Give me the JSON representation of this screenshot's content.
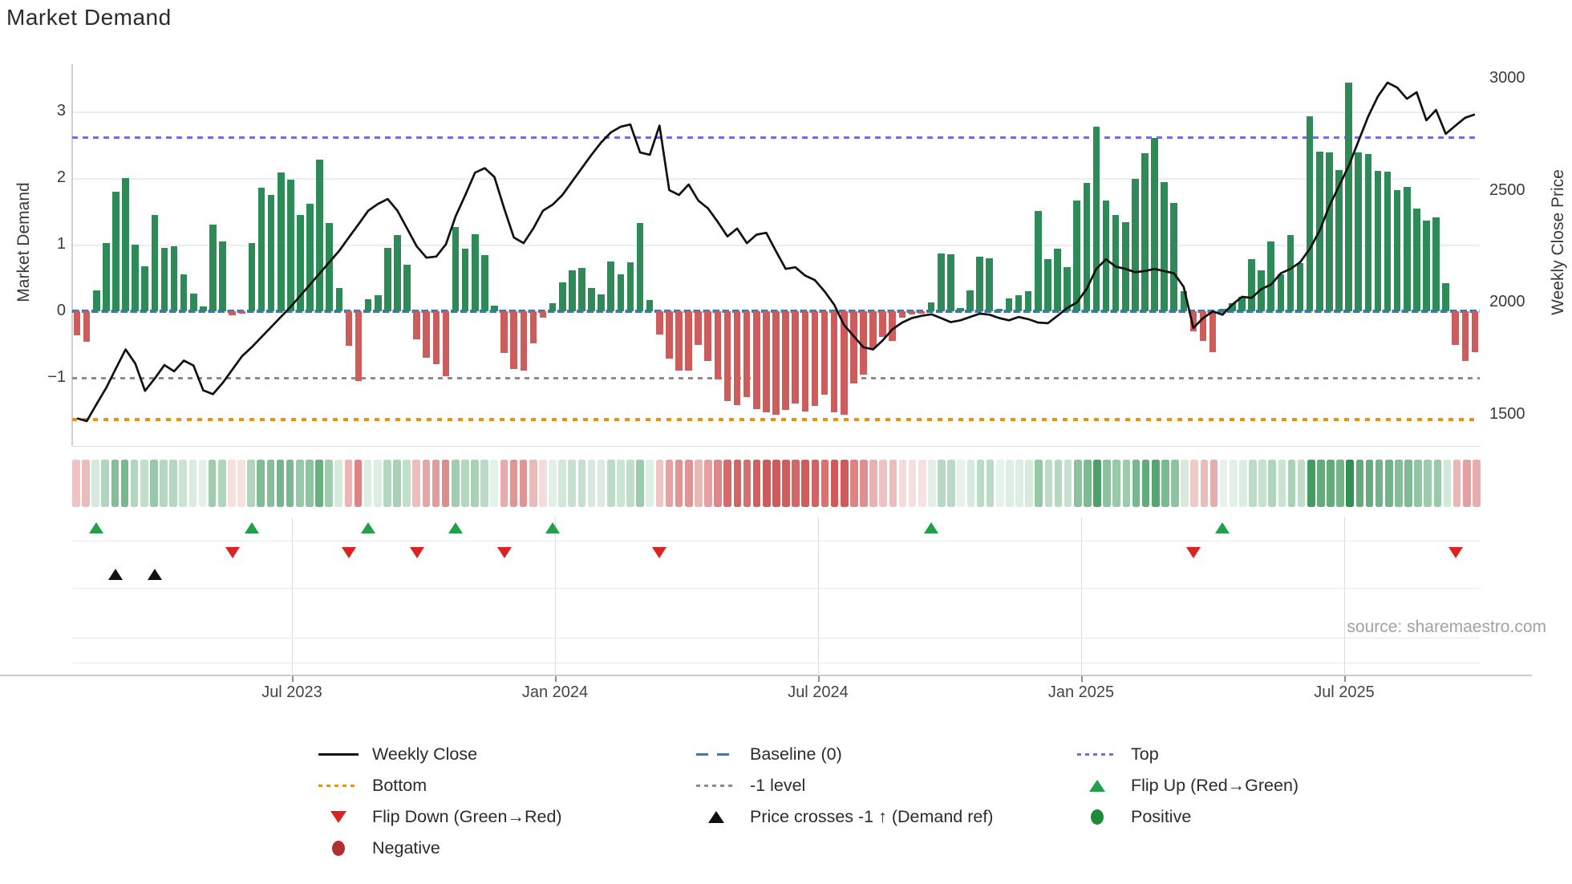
{
  "title": "Market Demand",
  "source": "source: sharemaestro.com",
  "axes": {
    "left_label": "Market Demand",
    "right_label": "Weekly Close Price"
  },
  "chart_data": {
    "type": "composite",
    "subtype": "bar+line dual-axis weekly",
    "title": "Market Demand",
    "left_axis": {
      "label": "Market Demand",
      "ticks": [
        3,
        2,
        1,
        0,
        -1
      ],
      "tick_labels": [
        "3",
        "2",
        "1",
        "0",
        "−1"
      ],
      "range": [
        -2.0,
        3.71
      ]
    },
    "right_axis": {
      "label": "Weekly Close Price",
      "ticks": [
        3000,
        2500,
        2000,
        1500
      ],
      "range": [
        1365,
        3065
      ]
    },
    "x_ticks": {
      "labels": [
        "Jul 2023",
        "Jan 2024",
        "Jul 2024",
        "Jan 2025",
        "Jul 2025"
      ]
    },
    "reference_lines": {
      "top": 2.61,
      "baseline": 0,
      "minus_one_level": -1,
      "bottom": -1.63
    },
    "series": [
      {
        "name": "Market Demand (weekly bars)",
        "type": "bar",
        "values": [
          -0.36,
          -0.46,
          0.31,
          1.02,
          1.8,
          2.0,
          1.0,
          0.68,
          1.45,
          0.95,
          0.98,
          0.55,
          0.27,
          0.07,
          1.3,
          1.05,
          -0.06,
          -0.03,
          1.03,
          1.85,
          1.75,
          2.08,
          1.98,
          1.45,
          1.62,
          2.28,
          1.32,
          0.35,
          -0.52,
          -1.05,
          0.18,
          0.24,
          0.95,
          1.15,
          0.7,
          -0.42,
          -0.7,
          -0.8,
          -0.97,
          1.26,
          0.94,
          1.16,
          0.84,
          0.08,
          -0.63,
          -0.87,
          -0.89,
          -0.48,
          -0.1,
          0.12,
          0.43,
          0.61,
          0.65,
          0.35,
          0.25,
          0.75,
          0.55,
          0.74,
          1.33,
          0.17,
          -0.35,
          -0.71,
          -0.89,
          -0.89,
          -0.51,
          -0.75,
          -1.02,
          -1.35,
          -1.41,
          -1.29,
          -1.47,
          -1.52,
          -1.55,
          -1.48,
          -1.38,
          -1.5,
          -1.42,
          -1.25,
          -1.52,
          -1.55,
          -1.08,
          -0.95,
          -0.55,
          -0.39,
          -0.45,
          -0.1,
          -0.05,
          -0.03,
          0.13,
          0.87,
          0.85,
          0.05,
          0.31,
          0.82,
          0.8,
          0.04,
          0.19,
          0.24,
          0.3,
          1.51,
          0.78,
          0.94,
          0.66,
          1.66,
          1.93,
          2.77,
          1.66,
          1.44,
          1.34,
          1.99,
          2.37,
          2.6,
          1.94,
          1.63,
          0.3,
          -0.3,
          -0.45,
          -0.62,
          0.04,
          0.12,
          0.22,
          0.78,
          0.61,
          1.05,
          0.55,
          1.14,
          0.72,
          2.93,
          2.4,
          2.39,
          2.12,
          3.43,
          2.39,
          2.36,
          2.11,
          2.1,
          1.82,
          1.87,
          1.54,
          1.36,
          1.41,
          0.42,
          -0.5,
          -0.75,
          -0.62
        ]
      },
      {
        "name": "Weekly Close",
        "type": "line",
        "values": [
          1482,
          1470,
          1545,
          1618,
          1705,
          1790,
          1727,
          1605,
          1660,
          1720,
          1692,
          1740,
          1718,
          1607,
          1590,
          1640,
          1700,
          1760,
          1800,
          1845,
          1890,
          1935,
          1980,
          2030,
          2080,
          2130,
          2180,
          2230,
          2290,
          2350,
          2410,
          2440,
          2462,
          2410,
          2330,
          2250,
          2200,
          2205,
          2260,
          2385,
          2480,
          2580,
          2600,
          2560,
          2420,
          2290,
          2265,
          2330,
          2410,
          2437,
          2480,
          2540,
          2600,
          2660,
          2715,
          2760,
          2785,
          2795,
          2670,
          2660,
          2790,
          2502,
          2480,
          2527,
          2455,
          2420,
          2360,
          2295,
          2330,
          2265,
          2303,
          2311,
          2229,
          2150,
          2157,
          2120,
          2100,
          2050,
          1990,
          1900,
          1850,
          1800,
          1790,
          1830,
          1880,
          1910,
          1930,
          1940,
          1947,
          1930,
          1912,
          1920,
          1935,
          1950,
          1945,
          1930,
          1920,
          1935,
          1925,
          1910,
          1907,
          1940,
          1975,
          2000,
          2060,
          2150,
          2193,
          2160,
          2150,
          2135,
          2140,
          2150,
          2140,
          2130,
          2070,
          1886,
          1930,
          1960,
          1945,
          1990,
          2025,
          2020,
          2060,
          2080,
          2130,
          2150,
          2180,
          2240,
          2320,
          2430,
          2520,
          2610,
          2720,
          2830,
          2920,
          2982,
          2960,
          2910,
          2939,
          2814,
          2860,
          2753,
          2790,
          2825,
          2840
        ]
      }
    ],
    "markers": {
      "flip_up_weeks": [
        2,
        18,
        30,
        39,
        49,
        88,
        118
      ],
      "flip_down_weeks": [
        16,
        28,
        35,
        44,
        60,
        115,
        142
      ],
      "price_cross_weeks": [
        4,
        8
      ]
    },
    "heatmap_strip": "per-week tint derived from demand bar sign and magnitude",
    "layout_hints": {
      "grid": "light horizontal",
      "legend_position": "bottom, 3 columns"
    }
  },
  "colors": {
    "green_bar": "#2e8b57",
    "red_bar": "#cd5c5c",
    "baseline_blue": "#2e7ebb",
    "top_purple": "#7b68ee",
    "bottom_orange": "#e8940a",
    "minus_one_gray": "#8c8c8c",
    "price_line": "#111111",
    "flip_up_green": "#21a04a",
    "flip_down_red": "#dd2222",
    "negative_dot": "#b03030",
    "positive_dot": "#1e8a35"
  },
  "legend": {
    "columns": [
      [
        {
          "marker": "line",
          "label": "Weekly Close"
        },
        {
          "marker": "dots-orange",
          "label": "Bottom"
        },
        {
          "marker": "tri-down-red",
          "label": "Flip Down (Green→Red)"
        },
        {
          "marker": "dot-darkred",
          "label": "Negative"
        }
      ],
      [
        {
          "marker": "dash-blue",
          "label": "Baseline (0)"
        },
        {
          "marker": "dots-gray",
          "label": "-1 level"
        },
        {
          "marker": "tri-up-black",
          "label": "Price crosses -1 ↑ (Demand ref)"
        }
      ],
      [
        {
          "marker": "dots-purple",
          "label": "Top"
        },
        {
          "marker": "tri-up-green",
          "label": "Flip Up (Red→Green)"
        },
        {
          "marker": "dot-green",
          "label": "Positive"
        }
      ]
    ]
  }
}
